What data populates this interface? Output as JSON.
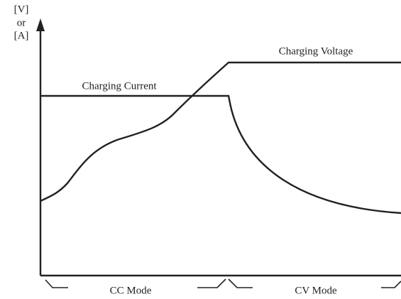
{
  "axis_label": {
    "line1": "[V]",
    "line2": "or",
    "line3": "[A]"
  },
  "curves": {
    "voltage": "Charging Voltage",
    "current": "Charging Current"
  },
  "modes": {
    "cc": "CC Mode",
    "cv": "CV Mode"
  }
}
